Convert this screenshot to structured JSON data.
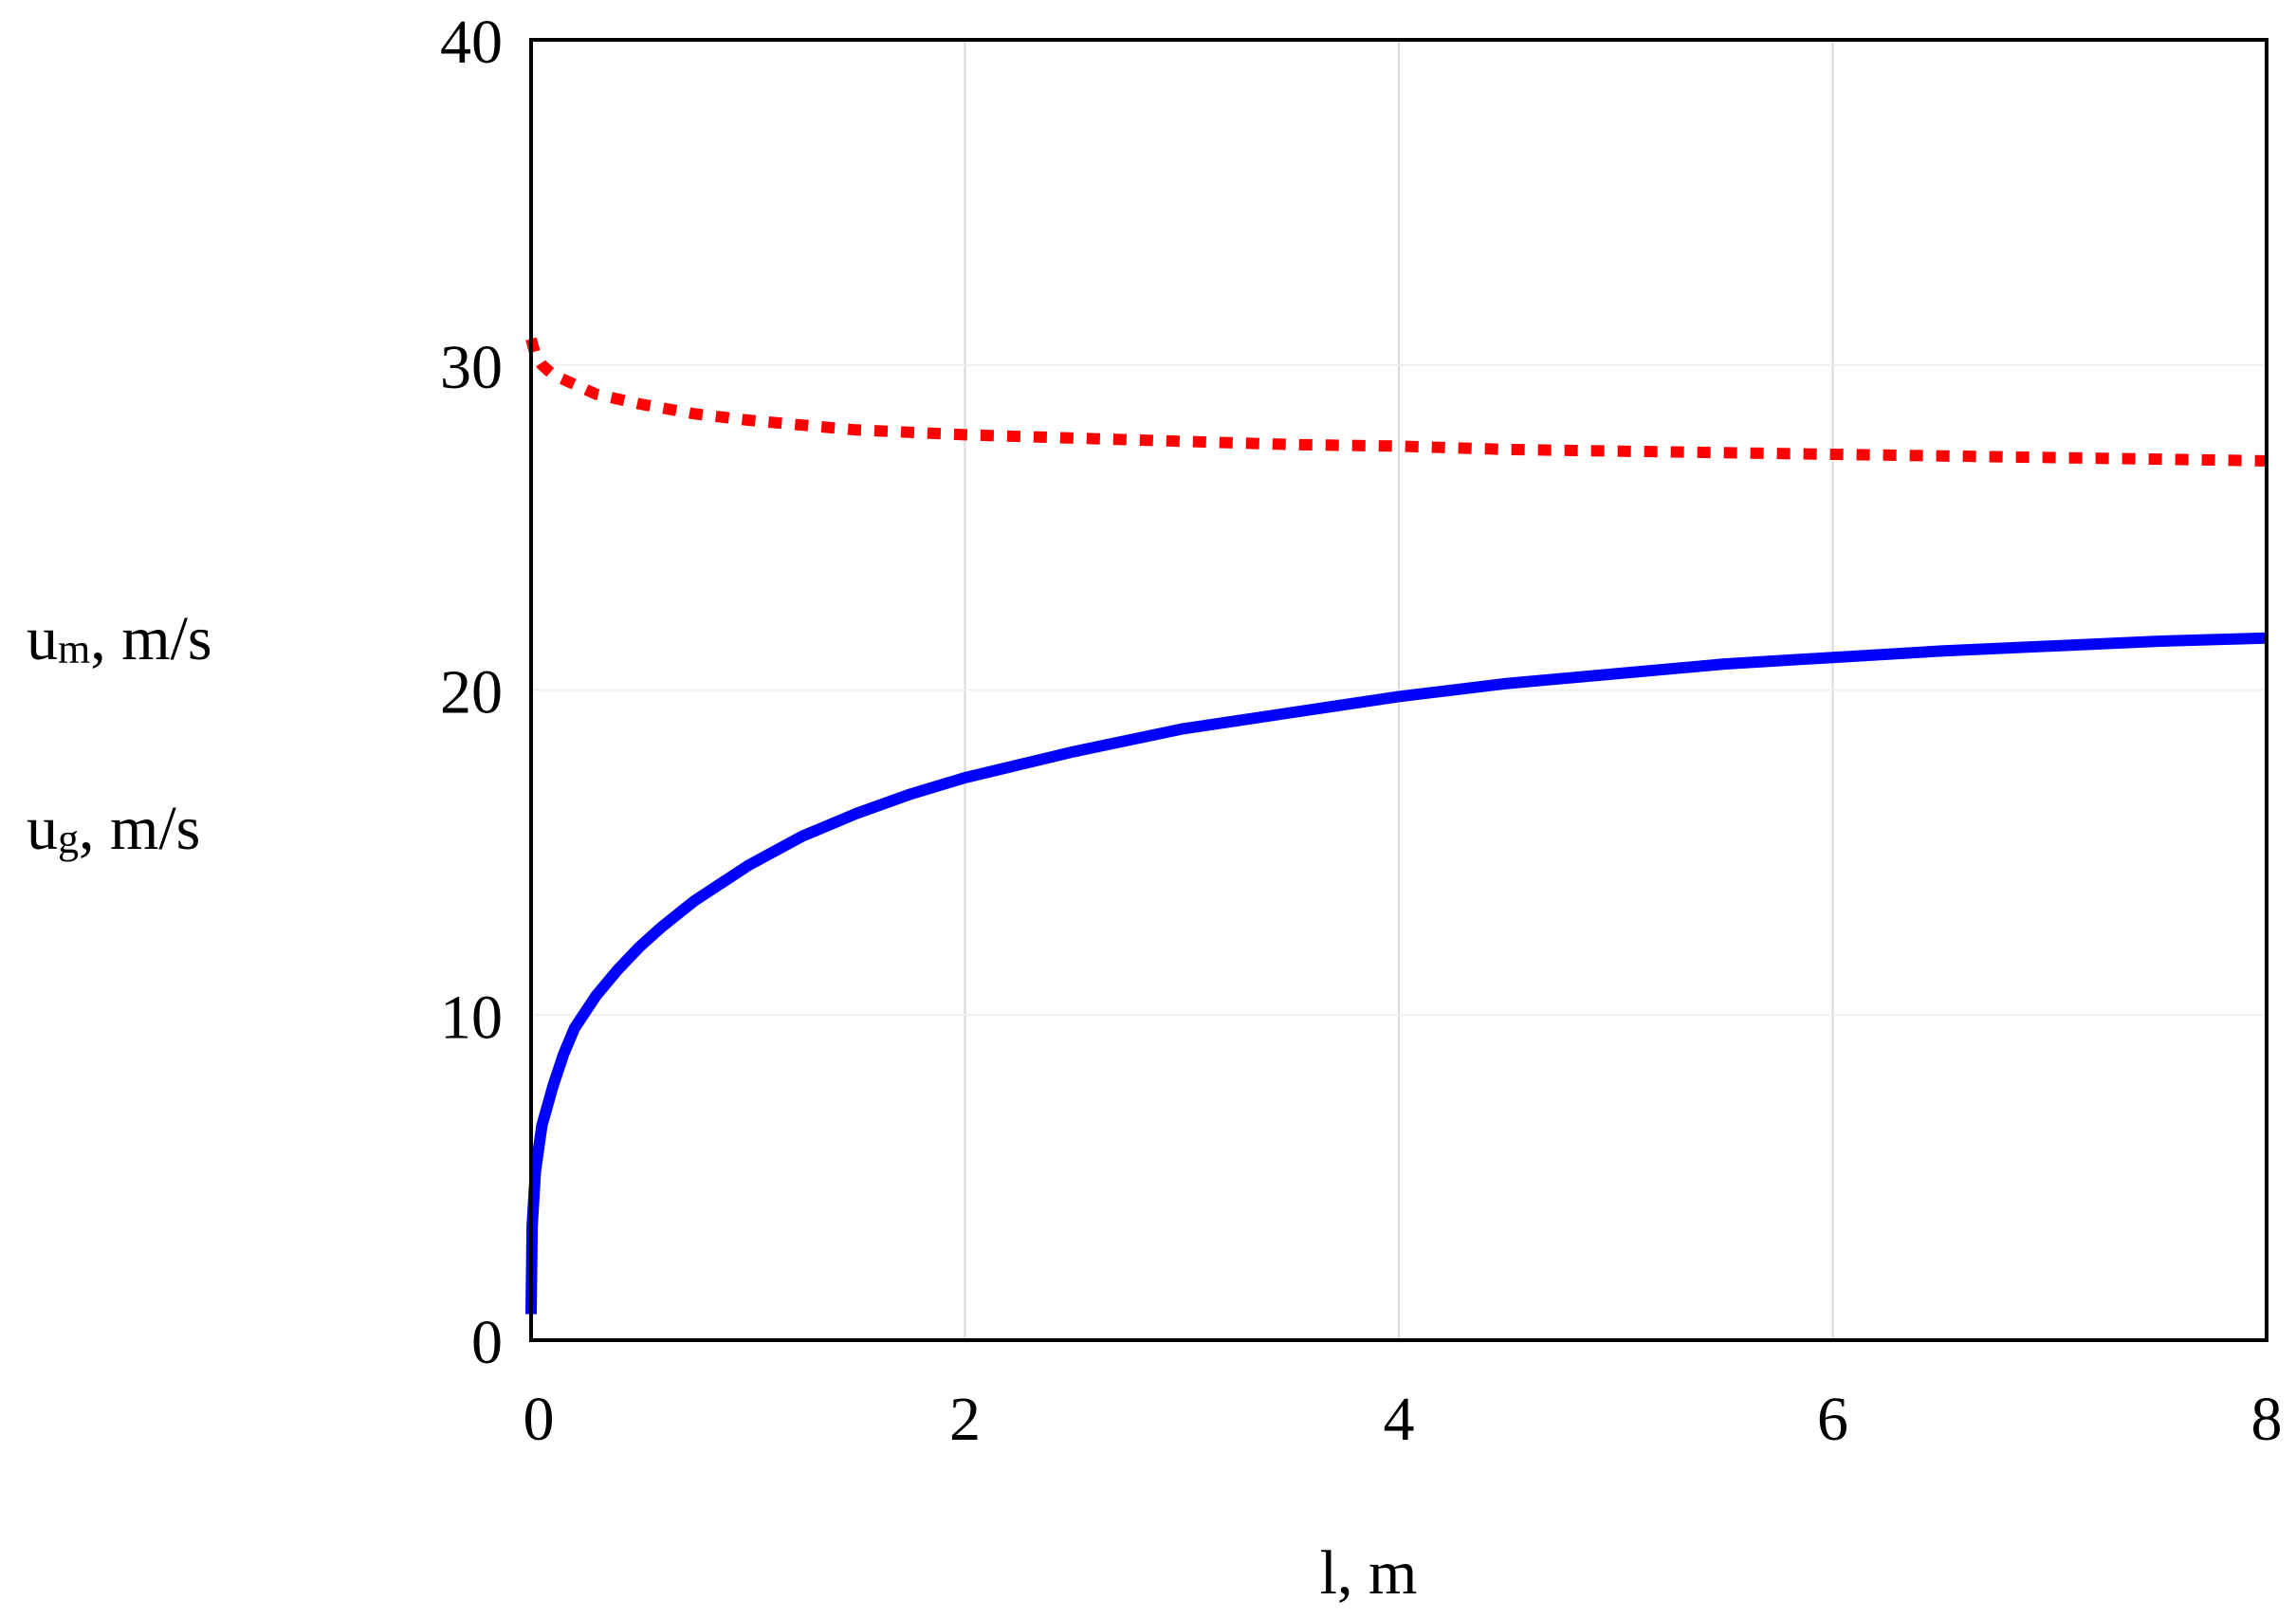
{
  "chart_data": {
    "type": "line",
    "title": "",
    "xlabel": "l, m",
    "ylabel_lines": [
      {
        "base": "u",
        "sub": "m",
        "rest": ", m/s"
      },
      {
        "base": "u",
        "sub": "g",
        "rest": ", m/s"
      }
    ],
    "xlim": [
      0,
      8
    ],
    "ylim": [
      0,
      40
    ],
    "x_ticks": [
      0,
      2,
      4,
      6,
      8
    ],
    "y_ticks": [
      0,
      10,
      20,
      30,
      40
    ],
    "grid": true,
    "series": [
      {
        "style": "dotted",
        "color": "#ff0000",
        "x": [
          0,
          0.02,
          0.05,
          0.1,
          0.2,
          0.3,
          0.5,
          0.75,
          1.0,
          1.25,
          1.5,
          2.0,
          2.5,
          3.0,
          3.5,
          4.0,
          4.5,
          5.0,
          5.5,
          6.0,
          6.5,
          7.0,
          7.5,
          8.0
        ],
        "y": [
          30.8,
          30.3,
          30.0,
          29.7,
          29.4,
          29.1,
          28.8,
          28.5,
          28.3,
          28.15,
          28.0,
          27.85,
          27.75,
          27.65,
          27.55,
          27.5,
          27.4,
          27.35,
          27.3,
          27.25,
          27.2,
          27.15,
          27.1,
          27.05
        ]
      },
      {
        "style": "solid",
        "color": "#0000ff",
        "x": [
          0,
          0.005,
          0.02,
          0.05,
          0.1,
          0.15,
          0.2,
          0.3,
          0.4,
          0.5,
          0.6,
          0.75,
          1.0,
          1.25,
          1.5,
          1.75,
          2.0,
          2.5,
          3.0,
          3.5,
          4.0,
          4.5,
          5.0,
          5.5,
          6.0,
          6.5,
          7.0,
          7.5,
          8.0
        ],
        "y": [
          0.8,
          3.5,
          5.2,
          6.6,
          7.8,
          8.8,
          9.6,
          10.6,
          11.4,
          12.1,
          12.7,
          13.5,
          14.6,
          15.5,
          16.2,
          16.8,
          17.3,
          18.1,
          18.8,
          19.3,
          19.8,
          20.2,
          20.5,
          20.8,
          21.0,
          21.2,
          21.35,
          21.5,
          21.6
        ]
      }
    ]
  }
}
